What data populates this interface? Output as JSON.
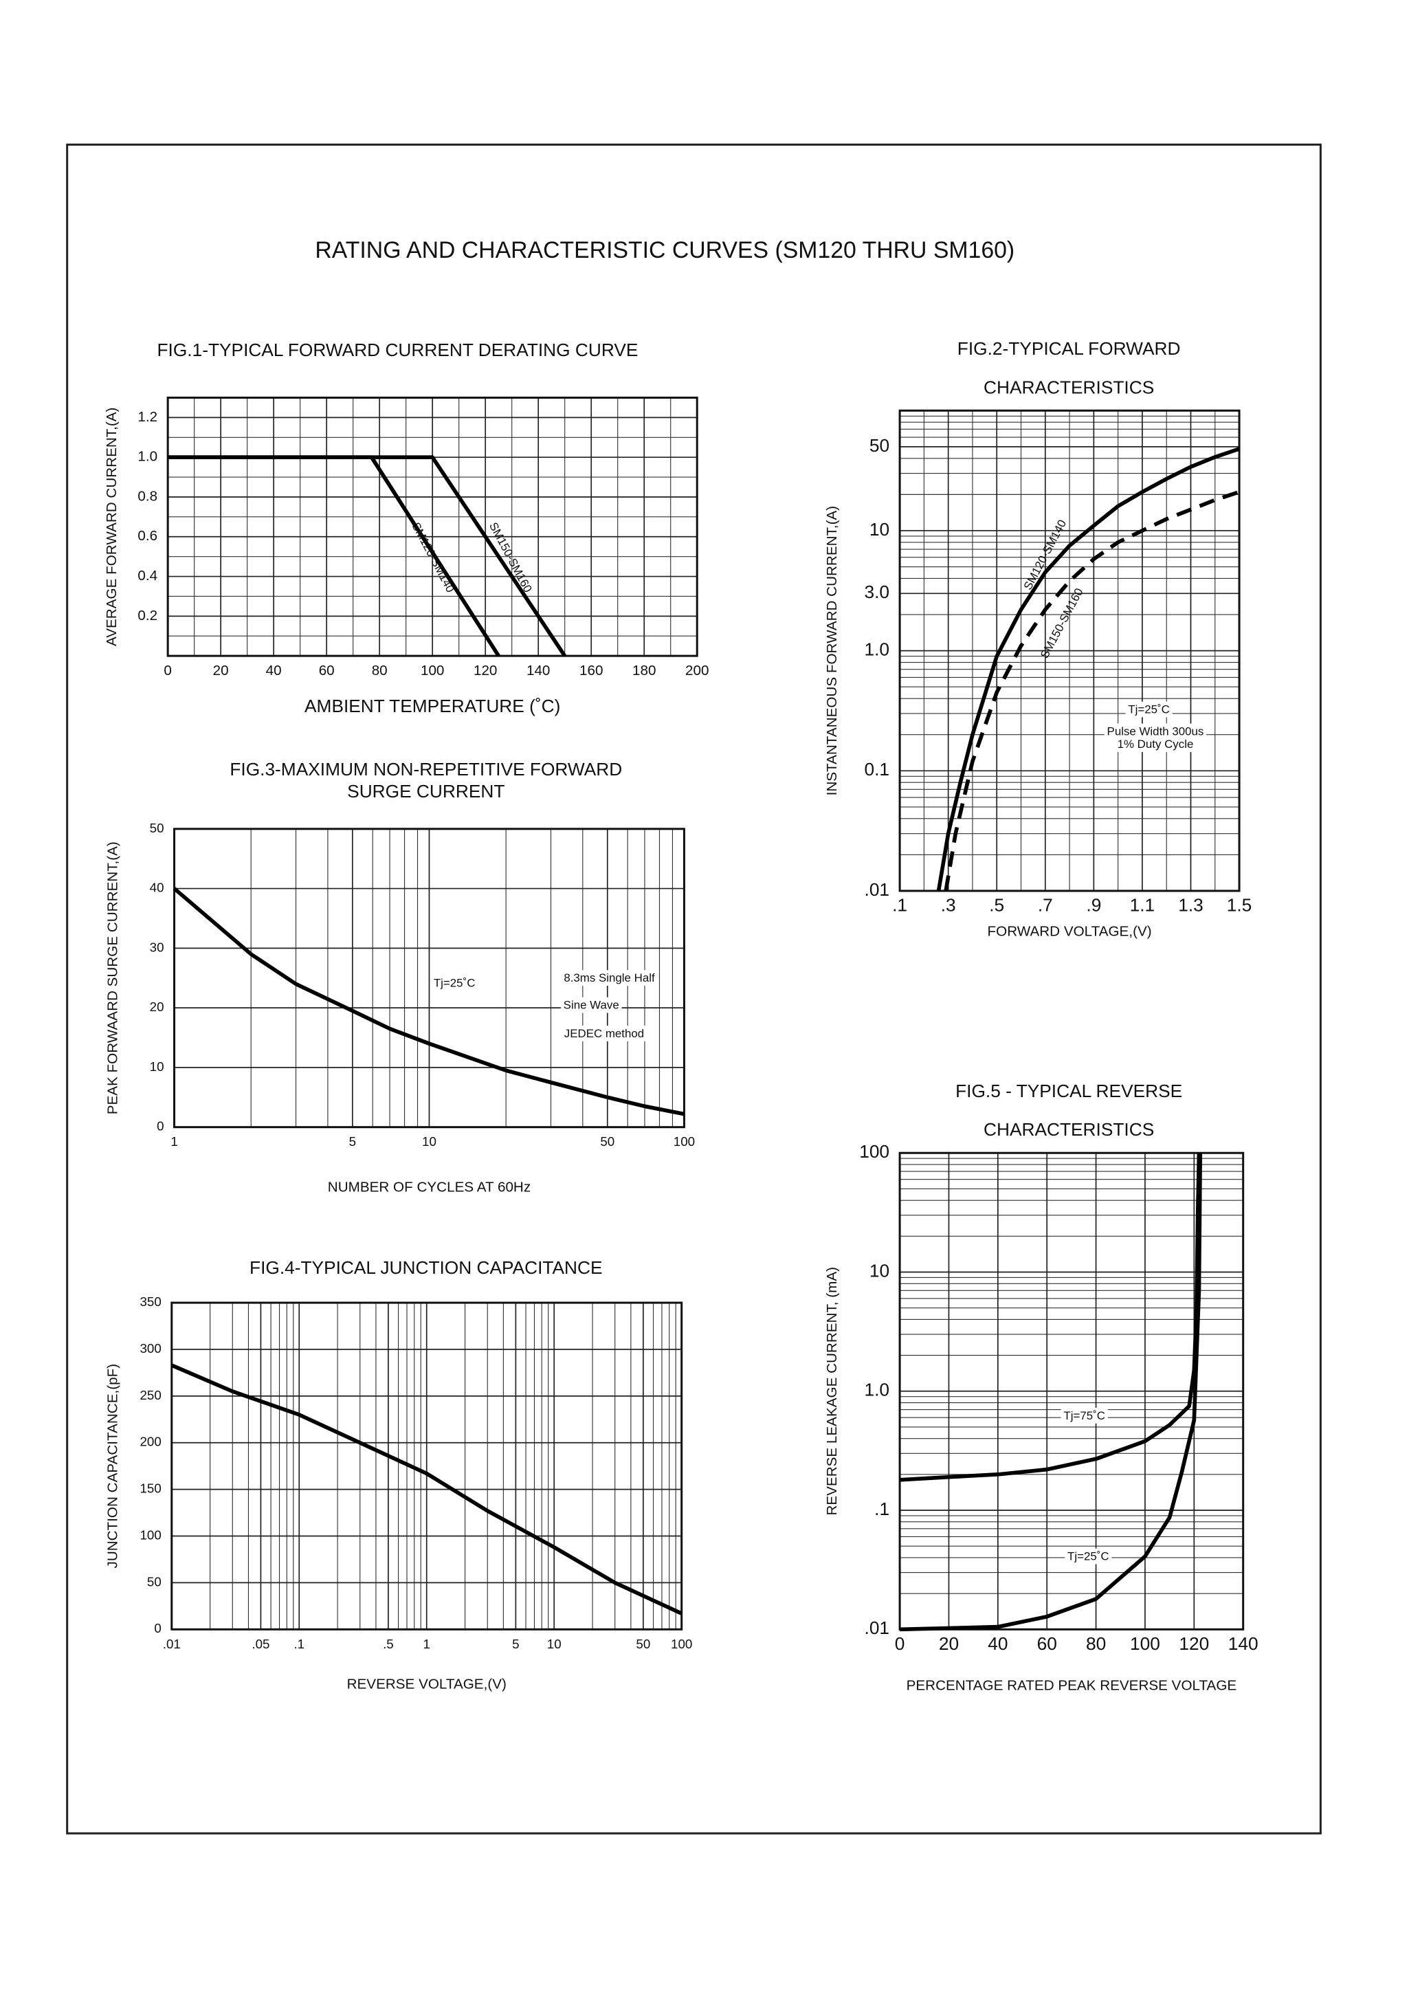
{
  "title": "RATING AND CHARACTERISTIC CURVES (SM120 THRU SM160)",
  "chart_data": [
    {
      "type": "line",
      "title": [
        "FIG.1-TYPICAL FORWARD CURRENT DERATING CURVE"
      ],
      "ylabel": "AVERAGE FORWARD CURRENT,(A)",
      "xlabel": "AMBIENT TEMPERATURE (˚C)",
      "xlim": [
        0,
        200
      ],
      "xticks": [
        0,
        20,
        40,
        60,
        80,
        100,
        120,
        140,
        160,
        180,
        200
      ],
      "ylim": [
        0,
        1.3
      ],
      "yticks": [
        0.2,
        0.4,
        0.6,
        0.8,
        {
          "value": 1,
          "label": "1.0"
        },
        1.2
      ],
      "grid": true,
      "series": [
        {
          "name": "SM120-SM140",
          "color": "#000000",
          "x": [
            0,
            77,
            125
          ],
          "values": [
            1,
            1,
            0
          ]
        },
        {
          "name": "SM150-SM160",
          "color": "#000000",
          "x": [
            0,
            100,
            150
          ],
          "values": [
            1,
            1,
            0
          ]
        }
      ]
    },
    {
      "type": "line",
      "title": [
        "FIG.2-TYPICAL FORWARD",
        "CHARACTERISTICS"
      ],
      "ylabel": "INSTANTANEOUS FORWARD CURRENT,(A)",
      "xlabel": "FORWARD VOLTAGE,(V)",
      "xlim": [
        0.1,
        1.5
      ],
      "xticks": [
        {
          "value": 0.1,
          "label": ".1"
        },
        {
          "value": 0.3,
          "label": ".3"
        },
        {
          "value": 0.5,
          "label": ".5"
        },
        {
          "value": 0.7,
          "label": ".7"
        },
        {
          "value": 0.9,
          "label": ".9"
        },
        1.1,
        1.3,
        1.5
      ],
      "ylim": [
        0.01,
        100
      ],
      "yscale": "log",
      "yticks": [
        {
          "value": 0.01,
          "label": ".01"
        },
        {
          "value": 0.1,
          "label": "0.1"
        },
        {
          "value": 1,
          "label": "1.0"
        },
        {
          "value": 3,
          "label": "3.0"
        },
        10,
        50
      ],
      "grid": true,
      "annotations": [
        "Tj=25˚C",
        "Pulse Width 300us",
        "1% Duty Cycle"
      ],
      "series": [
        {
          "name": "SM120-SM140",
          "color": "#000000",
          "dashed": false,
          "x": [
            0.26,
            0.3,
            0.35,
            0.4,
            0.5,
            0.6,
            0.7,
            0.8,
            0.9,
            1.0,
            1.1,
            1.2,
            1.3,
            1.4,
            1.5
          ],
          "values": [
            0.01,
            0.03,
            0.08,
            0.2,
            0.9,
            2.2,
            4.5,
            7.5,
            11,
            16,
            21,
            27,
            34,
            41,
            48
          ]
        },
        {
          "name": "SM150-SM160",
          "color": "#000000",
          "dashed": true,
          "x": [
            0.29,
            0.33,
            0.4,
            0.5,
            0.6,
            0.7,
            0.8,
            0.9,
            1.0,
            1.1,
            1.2,
            1.3,
            1.4,
            1.5
          ],
          "values": [
            0.01,
            0.03,
            0.12,
            0.45,
            1.1,
            2.2,
            3.8,
            5.8,
            8,
            10,
            12.5,
            15,
            18,
            21
          ]
        }
      ]
    },
    {
      "type": "line",
      "title": [
        "FIG.3-MAXIMUM NON-REPETITIVE FORWARD",
        "SURGE CURRENT"
      ],
      "ylabel": "PEAK FORWAARD SURGE CURRENT,(A)",
      "xlabel": "NUMBER OF CYCLES AT 60Hz",
      "xlim": [
        1,
        100
      ],
      "xscale": "log",
      "xticks": [
        1,
        5,
        10,
        50,
        100
      ],
      "ylim": [
        0,
        50
      ],
      "yticks": [
        0,
        10,
        20,
        30,
        40,
        50
      ],
      "grid": true,
      "annotations": [
        "Tj=25˚C",
        "8.3ms Single Half",
        "Sine Wave",
        "JEDEC method"
      ],
      "series": [
        {
          "name": null,
          "color": "#000000",
          "x": [
            1,
            2,
            3,
            5,
            7,
            10,
            20,
            30,
            50,
            70,
            100
          ],
          "values": [
            40,
            29,
            24,
            19.5,
            16.5,
            14,
            9.5,
            7.5,
            5,
            3.5,
            2.2
          ]
        }
      ]
    },
    {
      "type": "line",
      "title": [
        "FIG.4-TYPICAL JUNCTION CAPACITANCE"
      ],
      "ylabel": "JUNCTION CAPACITANCE,(pF)",
      "xlabel": "REVERSE VOLTAGE,(V)",
      "xlim": [
        0.01,
        100
      ],
      "xscale": "log",
      "xticks": [
        {
          "value": 0.01,
          "label": ".01"
        },
        {
          "value": 0.05,
          "label": ".05"
        },
        {
          "value": 0.1,
          "label": ".1"
        },
        {
          "value": 0.5,
          "label": ".5"
        },
        1,
        5,
        10,
        50,
        100
      ],
      "ylim": [
        0,
        350
      ],
      "yticks": [
        0,
        50,
        100,
        150,
        200,
        250,
        300,
        350
      ],
      "grid": true,
      "series": [
        {
          "name": null,
          "color": "#000000",
          "x": [
            0.01,
            0.03,
            0.1,
            0.3,
            1,
            3,
            10,
            30,
            100
          ],
          "values": [
            283,
            255,
            230,
            200,
            167,
            127,
            88,
            50,
            17
          ]
        }
      ]
    },
    {
      "type": "line",
      "title": [
        "FIG.5 - TYPICAL REVERSE",
        "CHARACTERISTICS"
      ],
      "ylabel": "REVERSE LEAKAGE CURRENT, (mA)",
      "xlabel": "PERCENTAGE RATED PEAK REVERSE VOLTAGE",
      "xlim": [
        0,
        140
      ],
      "xticks": [
        0,
        20,
        40,
        60,
        80,
        100,
        120,
        140
      ],
      "ylim": [
        0.01,
        100
      ],
      "yscale": "log",
      "yticks": [
        {
          "value": 0.01,
          "label": ".01"
        },
        {
          "value": 0.1,
          "label": ".1"
        },
        {
          "value": 1,
          "label": "1.0"
        },
        10,
        100
      ],
      "grid": true,
      "annotations": [
        "Tj=75˚C",
        "Tj=25˚C"
      ],
      "series": [
        {
          "name": null,
          "color": "#000000",
          "x": [
            0,
            20,
            40,
            60,
            80,
            100,
            110,
            118,
            120,
            121,
            121.5,
            122
          ],
          "values": [
            0.18,
            0.19,
            0.2,
            0.22,
            0.27,
            0.38,
            0.52,
            0.75,
            1.5,
            5,
            30,
            100
          ]
        },
        {
          "name": null,
          "color": "#000000",
          "x": [
            0,
            40,
            60,
            80,
            100,
            110,
            115,
            120,
            122,
            122.5
          ],
          "values": [
            0.01,
            0.0105,
            0.0128,
            0.018,
            0.041,
            0.087,
            0.21,
            0.57,
            7,
            100
          ]
        }
      ]
    }
  ]
}
